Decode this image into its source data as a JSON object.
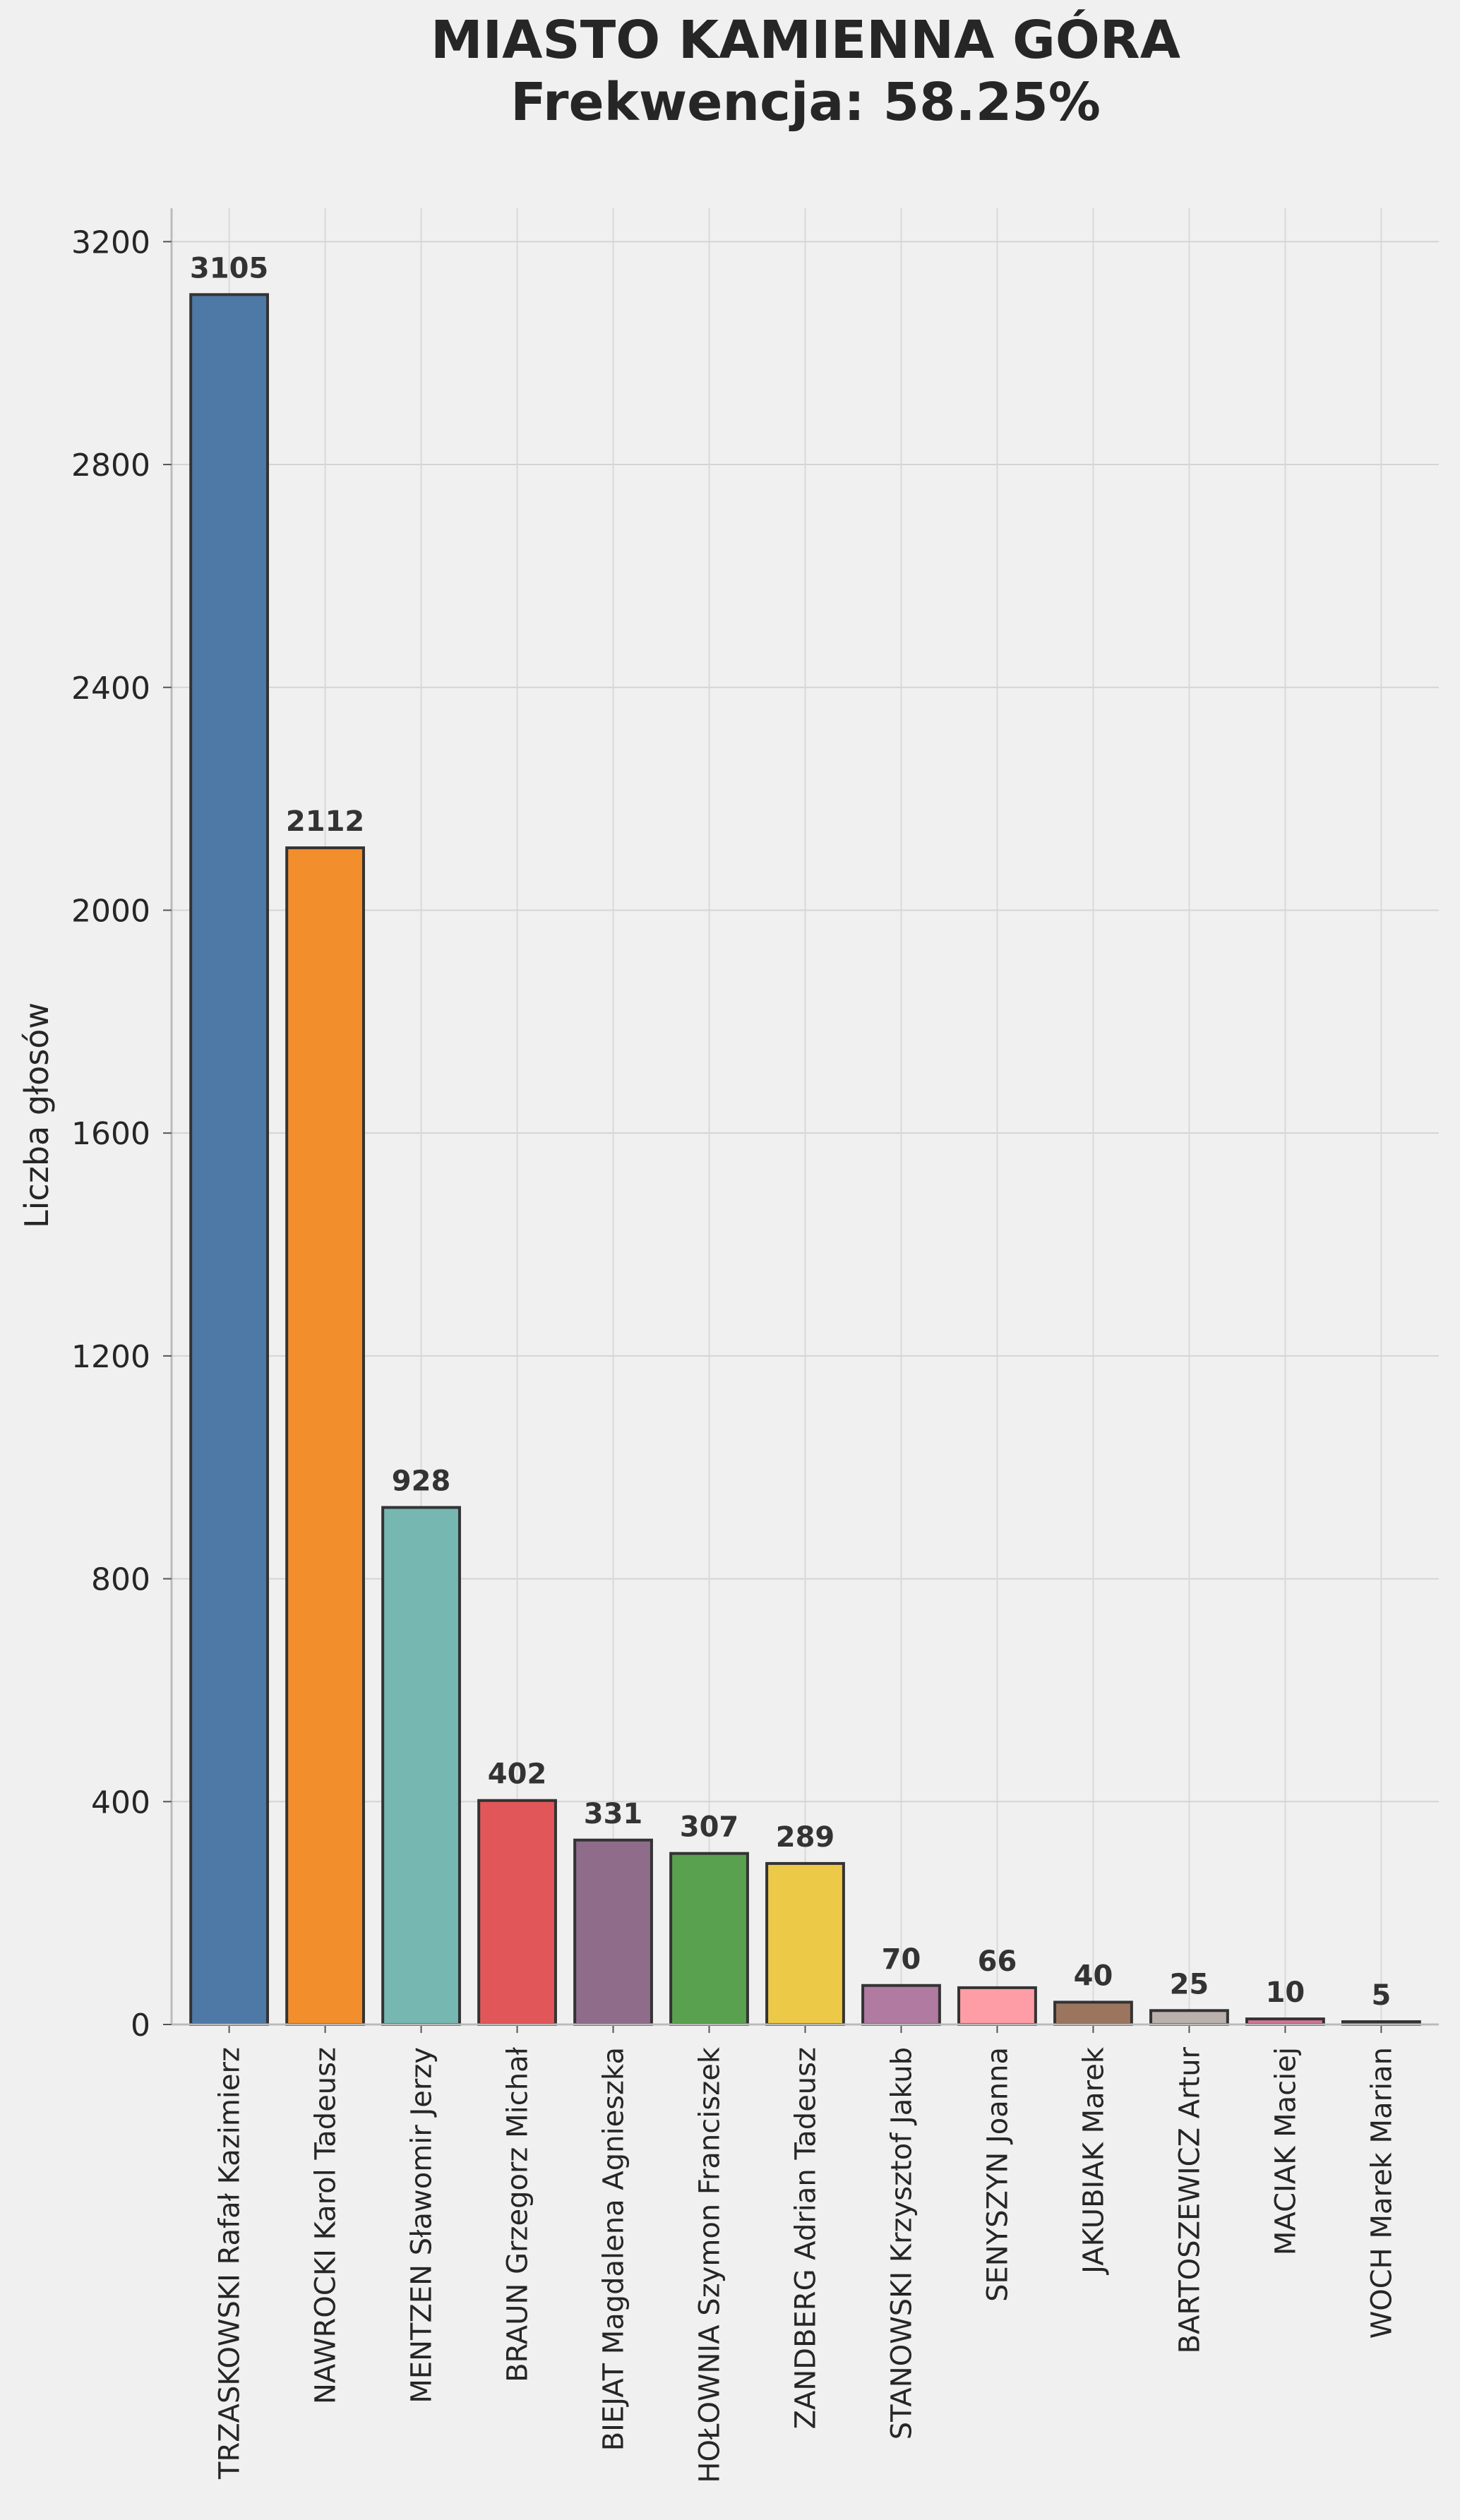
{
  "chart_data": {
    "type": "bar",
    "title_line1": "MIASTO KAMIENNA GÓRA",
    "title_line2": "Frekwencja: 58.25%",
    "xlabel": "",
    "ylabel": "Liczba głosów",
    "ylim": [
      0,
      3260
    ],
    "yticks": [
      0,
      400,
      800,
      1200,
      1600,
      2000,
      2400,
      2800,
      3200
    ],
    "grid": true,
    "legend": "none",
    "categories": [
      "TRZASKOWSKI Rafał Kazimierz",
      "NAWROCKI Karol Tadeusz",
      "MENTZEN Sławomir Jerzy",
      "BRAUN Grzegorz Michał",
      "BIEJAT Magdalena Agnieszka",
      "HOŁOWNIA Szymon Franciszek",
      "ZANDBERG Adrian Tadeusz",
      "STANOWSKI Krzysztof Jakub",
      "SENYSZYN Joanna",
      "JAKUBIAK Marek",
      "BARTOSZEWICZ Artur",
      "MACIAK Maciej",
      "WOCH Marek Marian"
    ],
    "values": [
      3105,
      2112,
      928,
      402,
      331,
      307,
      289,
      70,
      66,
      40,
      25,
      10,
      5
    ],
    "data_labels": [
      "3105",
      "2112",
      "928",
      "402",
      "331",
      "307",
      "289",
      "70",
      "66",
      "40",
      "25",
      "10",
      "5"
    ],
    "colors": [
      "#4e79a7",
      "#f28e2b",
      "#76b7b2",
      "#e15759",
      "#8e6c8a",
      "#59a14f",
      "#edc948",
      "#b07aa1",
      "#ff9da7",
      "#9c755f",
      "#bab0ac",
      "#d37295",
      "#6b7b8c"
    ]
  }
}
